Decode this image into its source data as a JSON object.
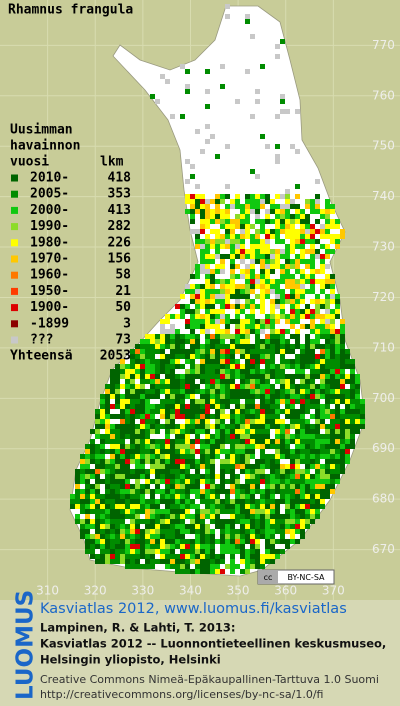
{
  "title": "Rhamnus frangula",
  "legend": {
    "header": [
      "Uusimman",
      "havainnon",
      "vuosi"
    ],
    "count_header": "lkm",
    "rows": [
      {
        "label": "2010-",
        "count": 418,
        "color": "#006400"
      },
      {
        "label": "2005-",
        "count": 353,
        "color": "#008c00"
      },
      {
        "label": "2000-",
        "count": 413,
        "color": "#10c810"
      },
      {
        "label": "1990-",
        "count": 282,
        "color": "#8cdc28"
      },
      {
        "label": "1980-",
        "count": 226,
        "color": "#ffff00"
      },
      {
        "label": "1970-",
        "count": 156,
        "color": "#ffc800"
      },
      {
        "label": "1960-",
        "count": 58,
        "color": "#ff7800"
      },
      {
        "label": "1950-",
        "count": 21,
        "color": "#ff3c00"
      },
      {
        "label": "1900-",
        "count": 50,
        "color": "#dc0000"
      },
      {
        "label": "-1899",
        "count": 3,
        "color": "#8c0000"
      },
      {
        "label": "???",
        "count": 73,
        "color": "#c8c8c8"
      }
    ],
    "total": {
      "label": "Yhteensä",
      "count": 2053
    }
  },
  "map": {
    "xlim": [
      300,
      384
    ],
    "ylim": [
      660,
      779
    ],
    "xticks": [
      310,
      320,
      330,
      340,
      350,
      360,
      370
    ],
    "yticks": [
      670,
      680,
      690,
      700,
      710,
      720,
      730,
      740,
      750,
      760,
      770
    ]
  },
  "license_badge": "BY-NC-SA",
  "footer": {
    "logo": "LUOMUS",
    "link": "Kasviatlas 2012, www.luomus.fi/kasviatlas",
    "citation": [
      "Lampinen, R. & Lahti, T. 2013:",
      "Kasviatlas 2012 -- Luonnontieteellinen keskusmuseo,",
      "Helsingin yliopisto, Helsinki"
    ],
    "license": [
      "Creative Commons Nimeä-Epäkaupallinen-Tarttuva 1.0 Suomi",
      "http://creativecommons.org/licenses/by-nc-sa/1.0/fi"
    ]
  }
}
